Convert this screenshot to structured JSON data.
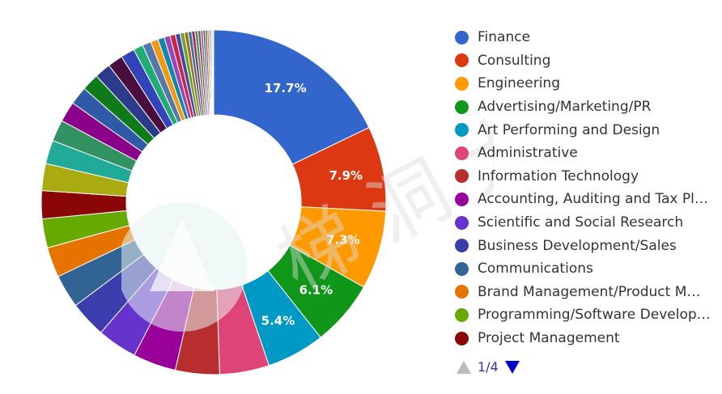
{
  "chart_data": {
    "type": "pie",
    "donut": true,
    "slices": [
      {
        "label": "Finance",
        "value": 17.7,
        "color": "#3366cc",
        "data_label": "17.7%"
      },
      {
        "label": "Consulting",
        "value": 7.9,
        "color": "#dc3912",
        "data_label": "7.9%"
      },
      {
        "label": "Engineering",
        "value": 7.3,
        "color": "#ff9900",
        "data_label": "7.3%"
      },
      {
        "label": "Advertising/Marketing/PR",
        "value": 6.1,
        "color": "#109618",
        "data_label": "6.1%"
      },
      {
        "label": "Art Performing and Design",
        "value": 5.4,
        "color": "#0099c6",
        "data_label": "5.4%"
      },
      {
        "label": "Administrative",
        "value": 4.6,
        "color": "#dd4477",
        "data_label": ""
      },
      {
        "label": "Information Technology",
        "value": 4.1,
        "color": "#b82e2e",
        "data_label": ""
      },
      {
        "label": "Accounting, Auditing and Tax Pl…",
        "value": 4.0,
        "color": "#990099",
        "data_label": ""
      },
      {
        "label": "Scientific and Social Research",
        "value": 3.7,
        "color": "#6633cc",
        "data_label": ""
      },
      {
        "label": "Business Development/Sales",
        "value": 3.4,
        "color": "#3b3eac",
        "data_label": ""
      },
      {
        "label": "Communications",
        "value": 3.1,
        "color": "#316395",
        "data_label": ""
      },
      {
        "label": "Brand Management/Product M…",
        "value": 2.8,
        "color": "#e67300",
        "data_label": ""
      },
      {
        "label": "Programming/Software Develop…",
        "value": 2.7,
        "color": "#66aa00",
        "data_label": ""
      },
      {
        "label": "Project Management",
        "value": 2.6,
        "color": "#8b0707",
        "data_label": ""
      },
      {
        "label": "",
        "value": 2.5,
        "color": "#aaaa11",
        "data_label": ""
      },
      {
        "label": "",
        "value": 2.2,
        "color": "#22aa99",
        "data_label": ""
      },
      {
        "label": "",
        "value": 2.0,
        "color": "#329262",
        "data_label": ""
      },
      {
        "label": "",
        "value": 1.9,
        "color": "#8b008b",
        "data_label": ""
      },
      {
        "label": "",
        "value": 1.7,
        "color": "#2f5aa8",
        "data_label": ""
      },
      {
        "label": "",
        "value": 1.6,
        "color": "#0e7a1a",
        "data_label": ""
      },
      {
        "label": "",
        "value": 1.5,
        "color": "#2b3a8a",
        "data_label": ""
      },
      {
        "label": "",
        "value": 1.4,
        "color": "#4a0e3e",
        "data_label": ""
      },
      {
        "label": "",
        "value": 1.3,
        "color": "#3344bb",
        "data_label": ""
      },
      {
        "label": "",
        "value": 0.9,
        "color": "#22aa77",
        "data_label": ""
      },
      {
        "label": "",
        "value": 0.8,
        "color": "#5577aa",
        "data_label": ""
      },
      {
        "label": "",
        "value": 0.7,
        "color": "#ee9911",
        "data_label": ""
      },
      {
        "label": "",
        "value": 0.6,
        "color": "#1188aa",
        "data_label": ""
      },
      {
        "label": "",
        "value": 0.55,
        "color": "#9944bb",
        "data_label": ""
      },
      {
        "label": "",
        "value": 0.5,
        "color": "#cc2244",
        "data_label": ""
      },
      {
        "label": "",
        "value": 0.45,
        "color": "#4444aa",
        "data_label": ""
      },
      {
        "label": "",
        "value": 0.4,
        "color": "#66aa22",
        "data_label": ""
      },
      {
        "label": "",
        "value": 0.35,
        "color": "#aa6622",
        "data_label": ""
      },
      {
        "label": "",
        "value": 0.32,
        "color": "#227799",
        "data_label": ""
      },
      {
        "label": "",
        "value": 0.3,
        "color": "#aa2266",
        "data_label": ""
      },
      {
        "label": "",
        "value": 0.28,
        "color": "#449944",
        "data_label": ""
      },
      {
        "label": "",
        "value": 0.25,
        "color": "#774499",
        "data_label": ""
      },
      {
        "label": "",
        "value": 0.22,
        "color": "#996633",
        "data_label": ""
      },
      {
        "label": "",
        "value": 0.2,
        "color": "#336699",
        "data_label": ""
      },
      {
        "label": "",
        "value": 0.18,
        "color": "#993333",
        "data_label": ""
      },
      {
        "label": "",
        "value": 0.16,
        "color": "#669933",
        "data_label": ""
      },
      {
        "label": "",
        "value": 0.14,
        "color": "#cc6699",
        "data_label": ""
      },
      {
        "label": "",
        "value": 0.12,
        "color": "#666699",
        "data_label": ""
      },
      {
        "label": "",
        "value": 0.1,
        "color": "#999966",
        "data_label": ""
      },
      {
        "label": "",
        "value": 0.08,
        "color": "#cc9966",
        "data_label": ""
      }
    ],
    "legend_position": "right",
    "legend_page": "1/4"
  },
  "legend": {
    "page_text": "1/4"
  },
  "watermark": {
    "text": "梯 洞 大 道"
  }
}
